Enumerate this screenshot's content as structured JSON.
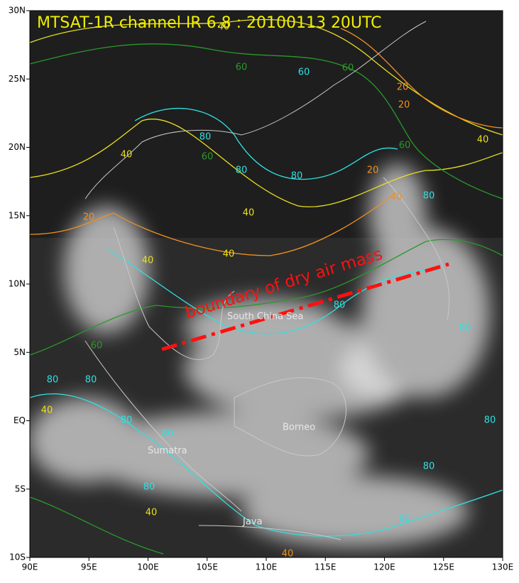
{
  "title": "MTSAT-1R channel IR 6.8 : 20100113 20UTC",
  "annotation": "boundary of dry air mass",
  "places": [
    "South China Sea",
    "Borneo",
    "Sumatra",
    "Java"
  ],
  "map": {
    "xlim": [
      90,
      130
    ],
    "ylim": [
      -10,
      30
    ],
    "xticks": [
      {
        "value": 90,
        "label": "90E"
      },
      {
        "value": 95,
        "label": "95E"
      },
      {
        "value": 100,
        "label": "100E"
      },
      {
        "value": 105,
        "label": "105E"
      },
      {
        "value": 110,
        "label": "110E"
      },
      {
        "value": 115,
        "label": "115E"
      },
      {
        "value": 120,
        "label": "120E"
      },
      {
        "value": 125,
        "label": "125E"
      },
      {
        "value": 130,
        "label": "130E"
      }
    ],
    "yticks": [
      {
        "value": -10,
        "label": "10S"
      },
      {
        "value": -5,
        "label": "5S"
      },
      {
        "value": 0,
        "label": "EQ"
      },
      {
        "value": 5,
        "label": "5N"
      },
      {
        "value": 10,
        "label": "10N"
      },
      {
        "value": 15,
        "label": "15N"
      },
      {
        "value": 20,
        "label": "20N"
      },
      {
        "value": 25,
        "label": "25N"
      },
      {
        "value": 30,
        "label": "30N"
      }
    ]
  },
  "contour_labels": [
    {
      "value": 40,
      "color": "#e8e020"
    },
    {
      "value": 60,
      "color": "#2a9a2a"
    },
    {
      "value": 60,
      "color": "#30e0e0"
    },
    {
      "value": 60,
      "color": "#2a9a2a"
    },
    {
      "value": 20,
      "color": "#f09020"
    },
    {
      "value": 20,
      "color": "#f09020"
    },
    {
      "value": 40,
      "color": "#e8e020"
    },
    {
      "value": 60,
      "color": "#2a9a2a"
    },
    {
      "value": 80,
      "color": "#30e0e0"
    },
    {
      "value": 80,
      "color": "#30e0e0"
    },
    {
      "value": 80,
      "color": "#30e0e0"
    },
    {
      "value": 60,
      "color": "#2a9a2a"
    },
    {
      "value": 40,
      "color": "#e8e020"
    },
    {
      "value": 20,
      "color": "#f09020"
    },
    {
      "value": 40,
      "color": "#e8e020"
    },
    {
      "value": 20,
      "color": "#f09020"
    },
    {
      "value": 80,
      "color": "#30e0e0"
    },
    {
      "value": 40,
      "color": "#f09020"
    },
    {
      "value": 40,
      "color": "#e8e020"
    },
    {
      "value": 40,
      "color": "#e8e020"
    },
    {
      "value": 80,
      "color": "#30e0e0"
    },
    {
      "value": 80,
      "color": "#30e0e0"
    },
    {
      "value": 60,
      "color": "#2a9a2a"
    },
    {
      "value": 80,
      "color": "#30e0e0"
    },
    {
      "value": 80,
      "color": "#30e0e0"
    },
    {
      "value": 40,
      "color": "#e8e020"
    },
    {
      "value": 80,
      "color": "#30e0e0"
    },
    {
      "value": 80,
      "color": "#30e0e0"
    },
    {
      "value": 80,
      "color": "#30e0e0"
    },
    {
      "value": 80,
      "color": "#30e0e0"
    },
    {
      "value": 80,
      "color": "#30e0e0"
    },
    {
      "value": 40,
      "color": "#e8e020"
    },
    {
      "value": 40,
      "color": "#f09020"
    },
    {
      "value": 80,
      "color": "#30e0e0"
    }
  ]
}
